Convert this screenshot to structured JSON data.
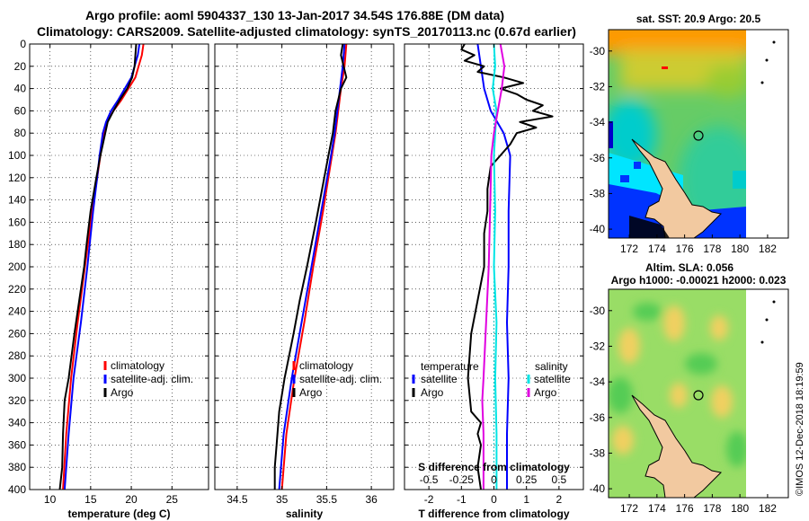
{
  "title_line1": "Argo profile: aoml 5904337_130 13-Jan-2017 34.54S 176.88E (DM data)",
  "title_line2": "Climatology: CARS2009. Satellite-adjusted climatology: synTS_20170113.nc (0.67d earlier)",
  "watermark": "©IMOS 12-Dec-2018 18:19:59",
  "colors": {
    "red": "#ff0000",
    "blue": "#0000ff",
    "black": "#000000",
    "cyan": "#00e5e5",
    "magenta": "#e000e0",
    "land": "#f2c9a0"
  },
  "chart_data": [
    {
      "type": "line",
      "id": "temperature",
      "xlabel": "temperature (deg C)",
      "ylabel": "",
      "xlim": [
        7.5,
        29.5
      ],
      "ylim": [
        400,
        0
      ],
      "grid": true,
      "xticks": [
        10,
        15,
        20,
        25
      ],
      "xtick_labels": [
        "10",
        "15",
        "20",
        "25"
      ],
      "yticks": [
        0,
        20,
        40,
        60,
        80,
        100,
        120,
        140,
        160,
        180,
        200,
        220,
        240,
        260,
        280,
        300,
        320,
        340,
        360,
        380,
        400
      ],
      "ytick_labels": [
        "0",
        "20",
        "40",
        "60",
        "80",
        "100",
        "120",
        "140",
        "160",
        "180",
        "200",
        "220",
        "240",
        "260",
        "280",
        "300",
        "320",
        "340",
        "360",
        "380",
        "400"
      ],
      "legend_position": "lower-right",
      "series": [
        {
          "name": "climatology",
          "color": "red",
          "depth": [
            0,
            10,
            30,
            50,
            60,
            70,
            80,
            100,
            120,
            150,
            200,
            250,
            300,
            350,
            400
          ],
          "values": [
            21.5,
            21.3,
            20.5,
            18.8,
            17.8,
            17.0,
            16.6,
            16.2,
            15.8,
            15.2,
            14.3,
            13.4,
            12.6,
            12.0,
            11.6
          ]
        },
        {
          "name": "satellite-adj. clim.",
          "color": "blue",
          "depth": [
            0,
            10,
            30,
            50,
            60,
            70,
            80,
            100,
            120,
            150,
            200,
            250,
            300,
            350,
            400
          ],
          "values": [
            21.0,
            20.8,
            20.0,
            18.4,
            17.5,
            16.9,
            16.5,
            16.1,
            15.8,
            15.3,
            14.6,
            13.8,
            12.9,
            12.3,
            11.8
          ]
        },
        {
          "name": "Argo",
          "color": "black",
          "depth": [
            0,
            10,
            20,
            30,
            40,
            50,
            60,
            70,
            80,
            90,
            100,
            120,
            150,
            180,
            200,
            230,
            260,
            300,
            320,
            350,
            380,
            400
          ],
          "values": [
            20.6,
            20.5,
            20.4,
            20.1,
            19.5,
            18.6,
            17.8,
            17.1,
            16.8,
            16.5,
            16.2,
            15.7,
            15.0,
            14.5,
            14.2,
            13.6,
            13.0,
            12.3,
            11.8,
            11.6,
            11.5,
            11.2
          ]
        }
      ]
    },
    {
      "type": "line",
      "id": "salinity",
      "xlabel": "salinity",
      "ylabel": "",
      "xlim": [
        34.25,
        36.25
      ],
      "ylim": [
        400,
        0
      ],
      "grid": true,
      "xticks": [
        34.5,
        35,
        35.5,
        36
      ],
      "xtick_labels": [
        "34.5",
        "35",
        "35.5",
        "36"
      ],
      "legend_position": "lower-right",
      "series": [
        {
          "name": "climatology",
          "color": "red",
          "depth": [
            0,
            20,
            40,
            60,
            80,
            100,
            150,
            200,
            250,
            300,
            350,
            400
          ],
          "values": [
            35.72,
            35.7,
            35.66,
            35.63,
            35.6,
            35.56,
            35.46,
            35.35,
            35.25,
            35.14,
            35.05,
            35.0
          ]
        },
        {
          "name": "satellite-adj. clim.",
          "color": "blue",
          "depth": [
            0,
            20,
            40,
            60,
            80,
            100,
            150,
            200,
            250,
            300,
            350,
            400
          ],
          "values": [
            35.7,
            35.68,
            35.65,
            35.62,
            35.59,
            35.55,
            35.44,
            35.33,
            35.22,
            35.11,
            35.02,
            34.97
          ]
        },
        {
          "name": "Argo",
          "color": "black",
          "depth": [
            0,
            10,
            20,
            30,
            40,
            50,
            60,
            80,
            100,
            130,
            160,
            200,
            230,
            260,
            300,
            330,
            360,
            380,
            400
          ],
          "values": [
            35.68,
            35.66,
            35.69,
            35.72,
            35.66,
            35.63,
            35.6,
            35.57,
            35.52,
            35.45,
            35.38,
            35.28,
            35.2,
            35.13,
            35.03,
            34.97,
            34.94,
            34.92,
            34.92
          ]
        }
      ]
    },
    {
      "type": "line",
      "id": "differences",
      "xlabel": "T difference from climatology",
      "xlabel_top": "S difference from climatology",
      "xlim": [
        -2.75,
        2.75
      ],
      "ylim": [
        400,
        0
      ],
      "grid": true,
      "xticks": [
        -2,
        -1,
        0,
        1,
        2
      ],
      "xtick_labels": [
        "-2",
        "-1",
        "0",
        "1",
        "2"
      ],
      "sticks": [
        -0.5,
        -0.25,
        0,
        0.25,
        0.5
      ],
      "stick_labels": [
        "-0.5",
        "-0.25",
        "0",
        "0.25",
        "0.5"
      ],
      "slim": [
        -0.6875,
        0.6875
      ],
      "legend_temperature": {
        "title": "temperature",
        "items": [
          {
            "name": "satellite",
            "color": "blue"
          },
          {
            "name": "Argo",
            "color": "black"
          }
        ]
      },
      "legend_salinity": {
        "title": "salinity",
        "items": [
          {
            "name": "satellite",
            "color": "cyan"
          },
          {
            "name": "Argo",
            "color": "magenta"
          }
        ]
      },
      "series": [
        {
          "name": "T satellite",
          "color": "blue",
          "depth": [
            0,
            20,
            40,
            60,
            80,
            100,
            150,
            200,
            250,
            300,
            350,
            400
          ],
          "values": [
            -0.5,
            -0.4,
            -0.3,
            -0.1,
            0.3,
            0.5,
            0.45,
            0.45,
            0.4,
            0.45,
            0.4,
            0.4
          ]
        },
        {
          "name": "T Argo",
          "color": "black",
          "depth": [
            0,
            5,
            10,
            15,
            20,
            25,
            30,
            35,
            40,
            45,
            50,
            55,
            60,
            65,
            70,
            75,
            80,
            90,
            100,
            110,
            130,
            150,
            170,
            200,
            230,
            260,
            300,
            330,
            340,
            350,
            360,
            380,
            400
          ],
          "values": [
            -0.9,
            -1.0,
            -0.6,
            -0.9,
            -0.3,
            -0.5,
            0.3,
            0.9,
            0.2,
            0.7,
            1.0,
            1.5,
            1.2,
            1.8,
            0.8,
            1.3,
            0.7,
            0.5,
            0.2,
            -0.1,
            -0.2,
            -0.2,
            -0.3,
            -0.3,
            -0.5,
            -0.7,
            -0.8,
            -0.7,
            -0.4,
            -0.5,
            -0.4,
            -0.5,
            -0.4
          ]
        },
        {
          "name": "S satellite",
          "color": "cyan",
          "depth": [
            0,
            20,
            40,
            60,
            100,
            150,
            200,
            250,
            300,
            350,
            400
          ],
          "values": [
            0.0,
            0.01,
            -0.01,
            0.02,
            0.0,
            0.01,
            0.0,
            0.02,
            0.01,
            0.02,
            0.02
          ]
        },
        {
          "name": "S Argo",
          "color": "magenta",
          "depth": [
            0,
            20,
            40,
            60,
            80,
            100,
            150,
            200,
            250,
            300,
            320,
            350,
            400
          ],
          "values": [
            0.05,
            0.08,
            0.06,
            0.03,
            0.0,
            -0.02,
            -0.03,
            -0.04,
            -0.06,
            -0.08,
            -0.09,
            -0.08,
            -0.08
          ]
        }
      ]
    }
  ],
  "maps": {
    "top": {
      "label": "sat. SST: 20.9 Argo: 20.5",
      "xlim": [
        170.5,
        183.5
      ],
      "ylim": [
        -40.5,
        -28.8
      ],
      "xticks": [
        172,
        174,
        176,
        178,
        180,
        182
      ],
      "xtick_labels": [
        "172",
        "174",
        "176",
        "178",
        "180",
        "182"
      ],
      "yticks": [
        -30,
        -32,
        -34,
        -36,
        -38,
        -40
      ],
      "ytick_labels": [
        "-30",
        "-32",
        "-34",
        "-36",
        "-38",
        "-40"
      ],
      "profile_lon": 176.88,
      "profile_lat": -34.54
    },
    "bottom": {
      "label1": "Altim. SLA: 0.056",
      "label2": "Argo h1000: -0.00021 h2000: 0.023",
      "xlim": [
        170.5,
        183.5
      ],
      "ylim": [
        -40.5,
        -28.8
      ],
      "xticks": [
        172,
        174,
        176,
        178,
        180,
        182
      ],
      "xtick_labels": [
        "172",
        "174",
        "176",
        "178",
        "180",
        "182"
      ],
      "yticks": [
        -30,
        -32,
        -34,
        -36,
        -38,
        -40
      ],
      "ytick_labels": [
        "-30",
        "-32",
        "-34",
        "-36",
        "-38",
        "-40"
      ],
      "profile_lon": 176.88,
      "profile_lat": -34.54
    }
  }
}
